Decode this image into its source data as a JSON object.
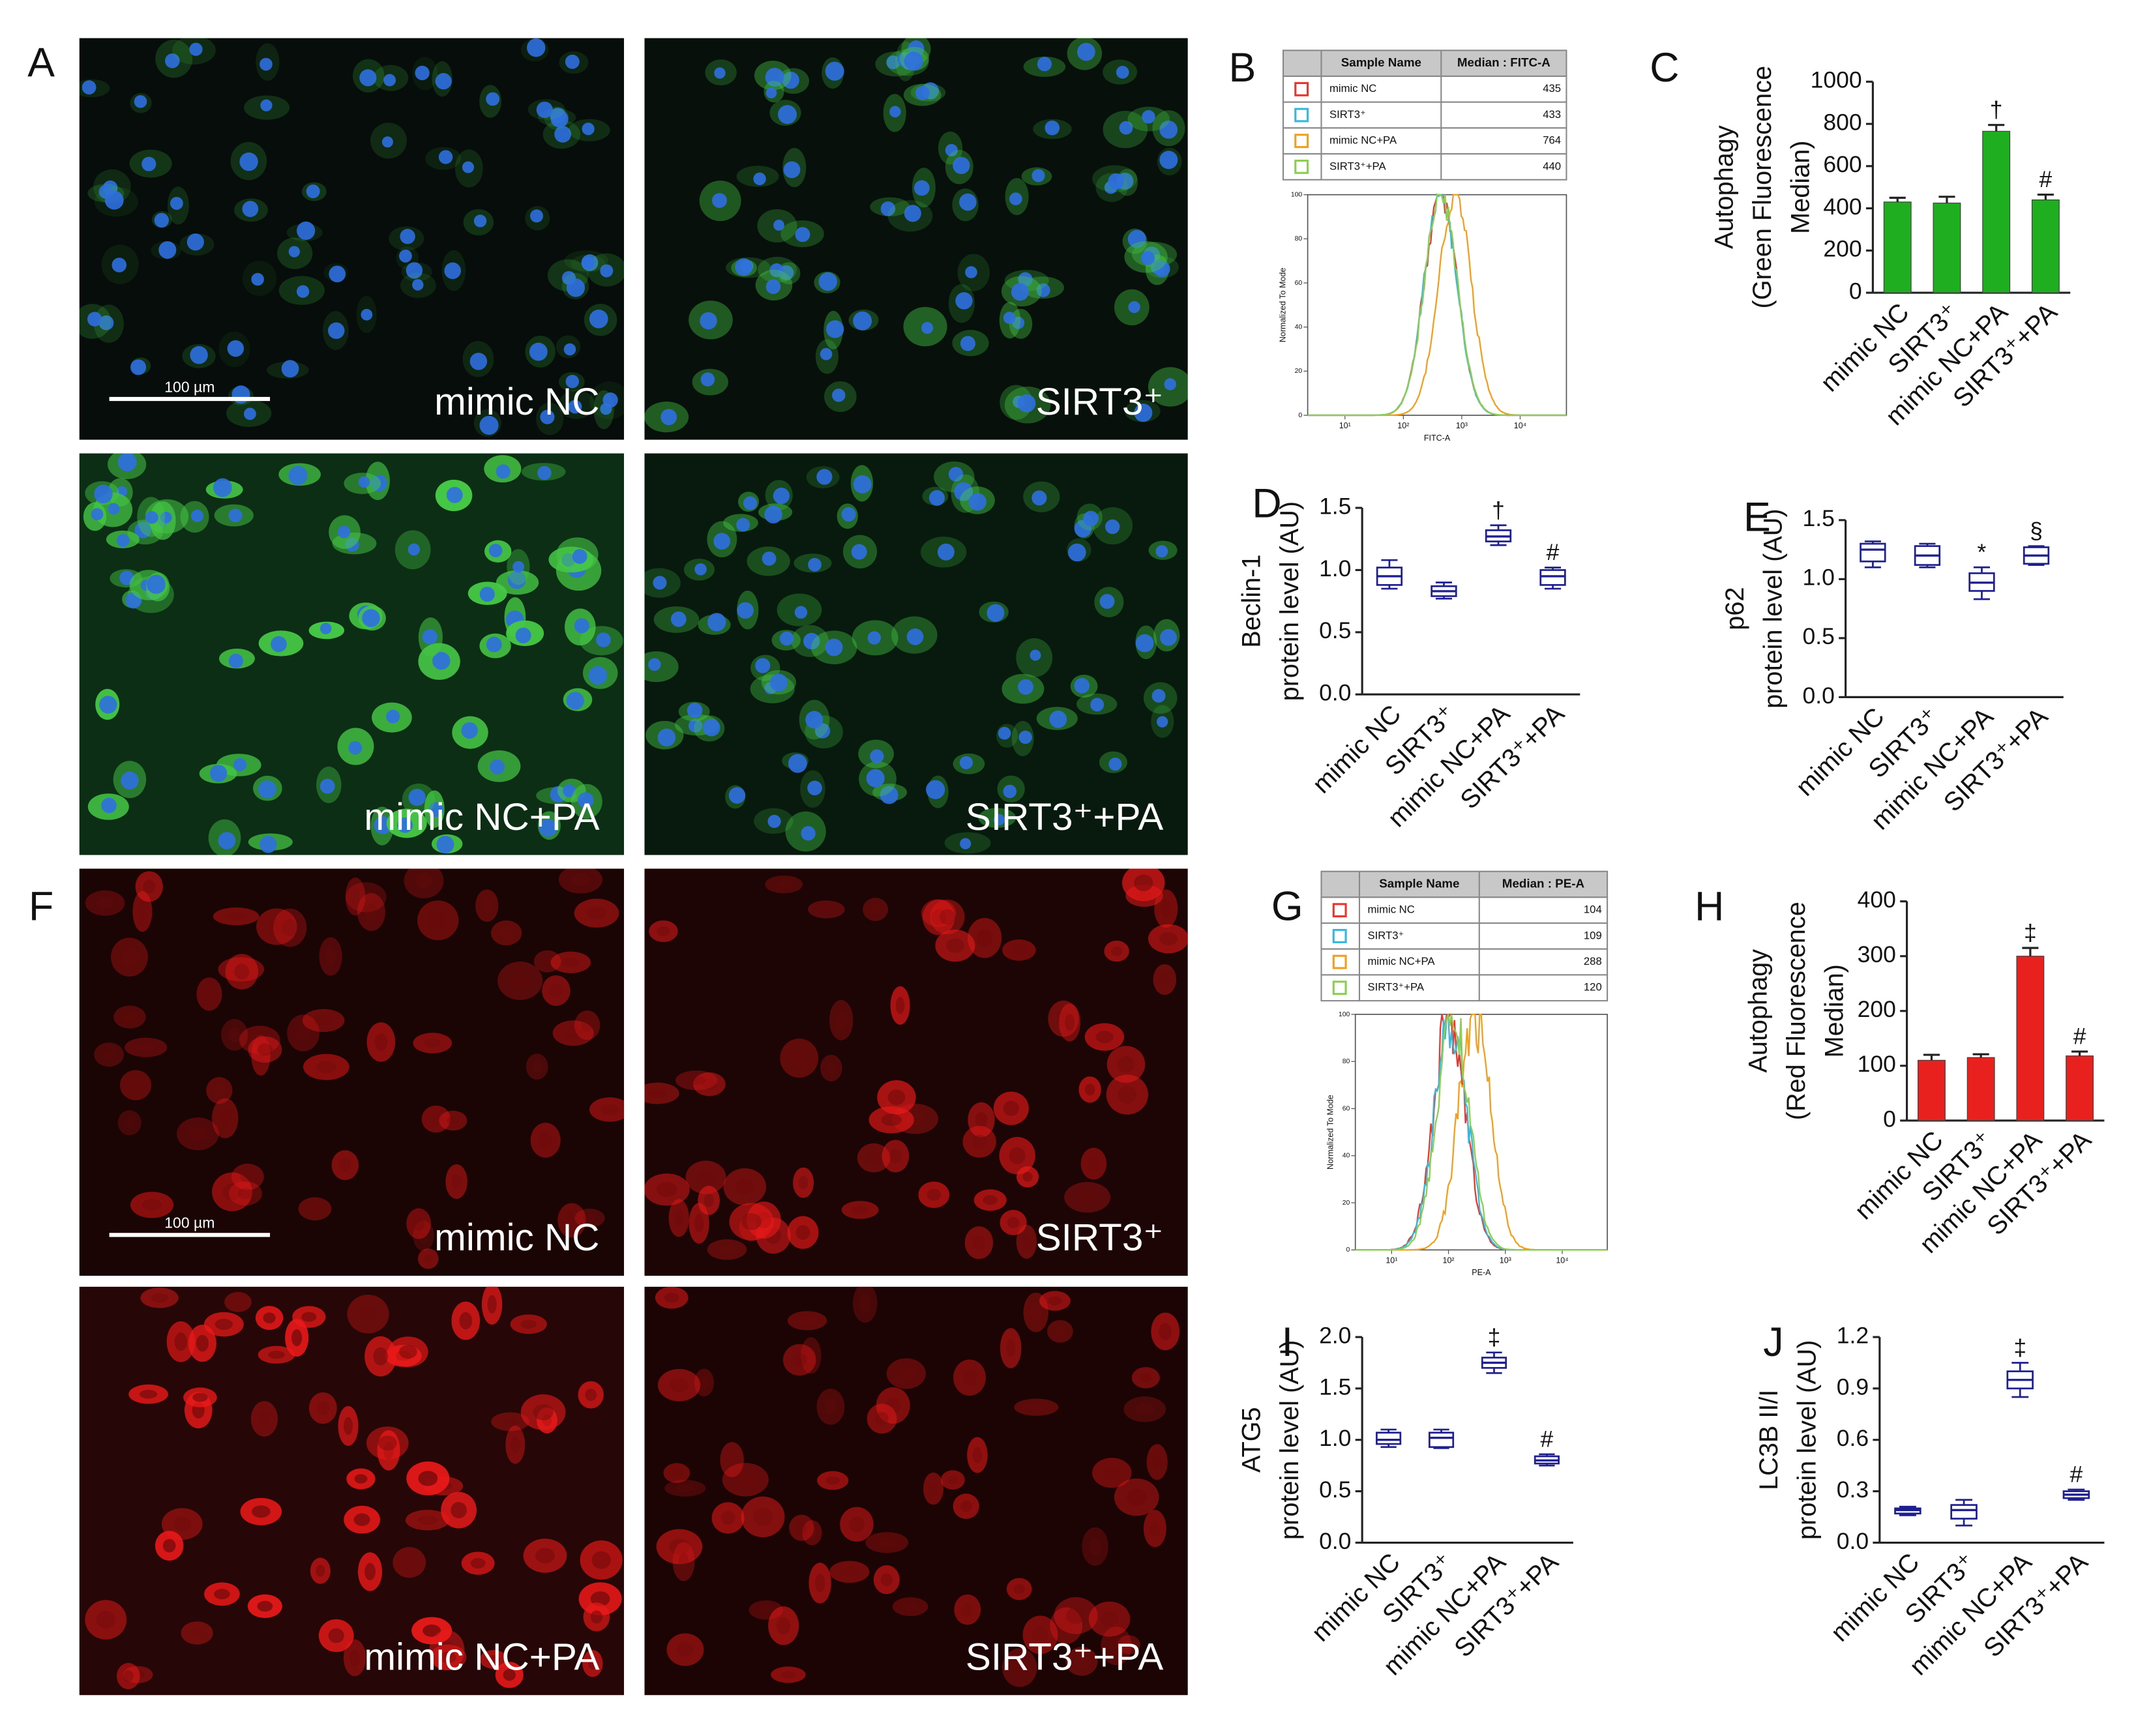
{
  "panel_labels": [
    "A",
    "B",
    "C",
    "D",
    "E",
    "F",
    "G",
    "H",
    "I",
    "J"
  ],
  "micrographs": [
    {
      "label": "mimic NC",
      "scale_bar": "100 µm"
    },
    {
      "label": "SIRT3⁺"
    },
    {
      "label": "mimic NC+PA"
    },
    {
      "label": "SIRT3⁺+PA"
    },
    {
      "label": "mimic NC",
      "scale_bar": "100 µm"
    },
    {
      "label": "SIRT3⁺"
    },
    {
      "label": "mimic NC+PA"
    },
    {
      "label": "SIRT3⁺+PA"
    }
  ],
  "flow": [
    {
      "table": {
        "header": [
          "Sample Name",
          "Median : FITC-A"
        ],
        "rows": [
          {
            "name": "mimic NC",
            "value": 435,
            "color": "#e8352e"
          },
          {
            "name": "SIRT3⁺",
            "value": 433,
            "color": "#35b8e0"
          },
          {
            "name": "mimic NC+PA",
            "value": 764,
            "color": "#f0a020"
          },
          {
            "name": "SIRT3⁺+PA",
            "value": 440,
            "color": "#8ccf50"
          }
        ]
      },
      "ylabel": "Normalized To Mode",
      "xlabel": "FITC-A",
      "ylim": [
        0,
        100
      ],
      "yticks": [
        0,
        20,
        40,
        60,
        80,
        100
      ],
      "xscale": "log",
      "xlim": [
        2.3,
        62000
      ],
      "xticks": [
        {
          "value": 10,
          "label": "10¹"
        },
        {
          "value": 100,
          "label": "10²"
        },
        {
          "value": 1000,
          "label": "10³"
        },
        {
          "value": 10000,
          "label": "10⁴"
        }
      ]
    },
    {
      "table": {
        "header": [
          "Sample Name",
          "Median : PE-A"
        ],
        "rows": [
          {
            "name": "mimic NC",
            "value": 104,
            "color": "#e8352e"
          },
          {
            "name": "SIRT3⁺",
            "value": 109,
            "color": "#35b8e0"
          },
          {
            "name": "mimic NC+PA",
            "value": 288,
            "color": "#f0a020"
          },
          {
            "name": "SIRT3⁺+PA",
            "value": 120,
            "color": "#8ccf50"
          }
        ]
      },
      "ylabel": "Normalized To Mode",
      "xlabel": "PE-A",
      "ylim": [
        0,
        100
      ],
      "yticks": [
        0,
        20,
        40,
        60,
        80,
        100
      ],
      "xscale": "log",
      "xlim": [
        2.3,
        62000
      ],
      "xticks": [
        {
          "value": 10,
          "label": "10¹"
        },
        {
          "value": 100,
          "label": "10²"
        },
        {
          "value": 1000,
          "label": "10³"
        },
        {
          "value": 10000,
          "label": "10⁴"
        }
      ]
    }
  ],
  "chart_data": [
    {
      "type": "bar",
      "ylabel": [
        "Autophagy",
        "(Green Fluorescence",
        "Median)"
      ],
      "categories": [
        "mimic NC",
        "SIRT3⁺",
        "mimic NC+PA",
        "SIRT3⁺+PA"
      ],
      "values": [
        430,
        425,
        765,
        440
      ],
      "errors": [
        20,
        30,
        30,
        25
      ],
      "annotations": [
        null,
        null,
        "†",
        "#"
      ],
      "color": "#1fae1f",
      "ylim": [
        0,
        1000
      ],
      "yticks": [
        0,
        200,
        400,
        600,
        800,
        1000
      ]
    },
    {
      "type": "box",
      "ylabel": [
        "Beclin-1",
        "protein level (AU)"
      ],
      "categories": [
        "mimic NC",
        "SIRT3⁺",
        "mimic NC+PA",
        "SIRT3⁺+PA"
      ],
      "boxes": [
        {
          "min": 0.85,
          "q1": 0.88,
          "median": 0.95,
          "q3": 1.02,
          "max": 1.08
        },
        {
          "min": 0.77,
          "q1": 0.79,
          "median": 0.83,
          "q3": 0.87,
          "max": 0.9
        },
        {
          "min": 1.2,
          "q1": 1.23,
          "median": 1.27,
          "q3": 1.32,
          "max": 1.36
        },
        {
          "min": 0.85,
          "q1": 0.88,
          "median": 0.95,
          "q3": 1.0,
          "max": 1.02
        }
      ],
      "annotations": [
        null,
        null,
        "†",
        "#"
      ],
      "color": "#1f1f8f",
      "ylim": [
        0,
        1.5
      ],
      "yticks": [
        {
          "value": 0,
          "label": "0.0"
        },
        0.5,
        {
          "value": 1,
          "label": "1.0"
        },
        1.5
      ]
    },
    {
      "type": "box",
      "ylabel": [
        "p62",
        "protein level (AU)"
      ],
      "categories": [
        "mimic NC",
        "SIRT3⁺",
        "mimic NC+PA",
        "SIRT3⁺+PA"
      ],
      "boxes": [
        {
          "min": 1.1,
          "q1": 1.15,
          "median": 1.25,
          "q3": 1.3,
          "max": 1.32
        },
        {
          "min": 1.1,
          "q1": 1.12,
          "median": 1.2,
          "q3": 1.28,
          "max": 1.3
        },
        {
          "min": 0.83,
          "q1": 0.9,
          "median": 0.97,
          "q3": 1.05,
          "max": 1.1
        },
        {
          "min": 1.12,
          "q1": 1.13,
          "median": 1.2,
          "q3": 1.27,
          "max": 1.28
        }
      ],
      "annotations": [
        null,
        null,
        "*",
        "§"
      ],
      "color": "#1f1f8f",
      "ylim": [
        0,
        1.5
      ],
      "yticks": [
        {
          "value": 0,
          "label": "0.0"
        },
        0.5,
        {
          "value": 1,
          "label": "1.0"
        },
        1.5
      ]
    },
    {
      "type": "bar",
      "ylabel": [
        "Autophagy",
        "(Red Fluorescence",
        "Median)"
      ],
      "categories": [
        "mimic NC",
        "SIRT3⁺",
        "mimic NC+PA",
        "SIRT3⁺+PA"
      ],
      "values": [
        110,
        115,
        300,
        118
      ],
      "errors": [
        10,
        6,
        15,
        8
      ],
      "annotations": [
        null,
        null,
        "‡",
        "#"
      ],
      "color": "#e8201e",
      "ylim": [
        0,
        400
      ],
      "yticks": [
        0,
        100,
        200,
        300,
        400
      ]
    },
    {
      "type": "box",
      "ylabel": [
        "ATG5",
        "protein level (AU)"
      ],
      "categories": [
        "mimic NC",
        "SIRT3⁺",
        "mimic NC+PA",
        "SIRT3⁺+PA"
      ],
      "boxes": [
        {
          "min": 0.93,
          "q1": 0.96,
          "median": 1.0,
          "q3": 1.07,
          "max": 1.1
        },
        {
          "min": 0.92,
          "q1": 0.93,
          "median": 1.02,
          "q3": 1.07,
          "max": 1.1
        },
        {
          "min": 1.65,
          "q1": 1.7,
          "median": 1.75,
          "q3": 1.8,
          "max": 1.85
        },
        {
          "min": 0.75,
          "q1": 0.77,
          "median": 0.8,
          "q3": 0.84,
          "max": 0.86
        }
      ],
      "annotations": [
        null,
        null,
        "‡",
        "#"
      ],
      "color": "#1f1f8f",
      "ylim": [
        0,
        2
      ],
      "yticks": [
        {
          "value": 0,
          "label": "0.0"
        },
        0.5,
        {
          "value": 1,
          "label": "1.0"
        },
        1.5,
        {
          "value": 2,
          "label": "2.0"
        }
      ]
    },
    {
      "type": "box",
      "ylabel": [
        "LC3B II/I",
        "protein level (AU)"
      ],
      "categories": [
        "mimic NC",
        "SIRT3⁺",
        "mimic NC+PA",
        "SIRT3⁺+PA"
      ],
      "boxes": [
        {
          "min": 0.16,
          "q1": 0.17,
          "median": 0.19,
          "q3": 0.2,
          "max": 0.21
        },
        {
          "min": 0.1,
          "q1": 0.14,
          "median": 0.19,
          "q3": 0.22,
          "max": 0.25
        },
        {
          "min": 0.85,
          "q1": 0.9,
          "median": 0.95,
          "q3": 1.0,
          "max": 1.05
        },
        {
          "min": 0.25,
          "q1": 0.26,
          "median": 0.28,
          "q3": 0.3,
          "max": 0.31
        }
      ],
      "annotations": [
        null,
        null,
        "‡",
        "#"
      ],
      "color": "#1f1f8f",
      "ylim": [
        0,
        1.2
      ],
      "yticks": [
        {
          "value": 0,
          "label": "0.0"
        },
        0.3,
        0.6,
        0.9,
        1.2
      ]
    }
  ]
}
